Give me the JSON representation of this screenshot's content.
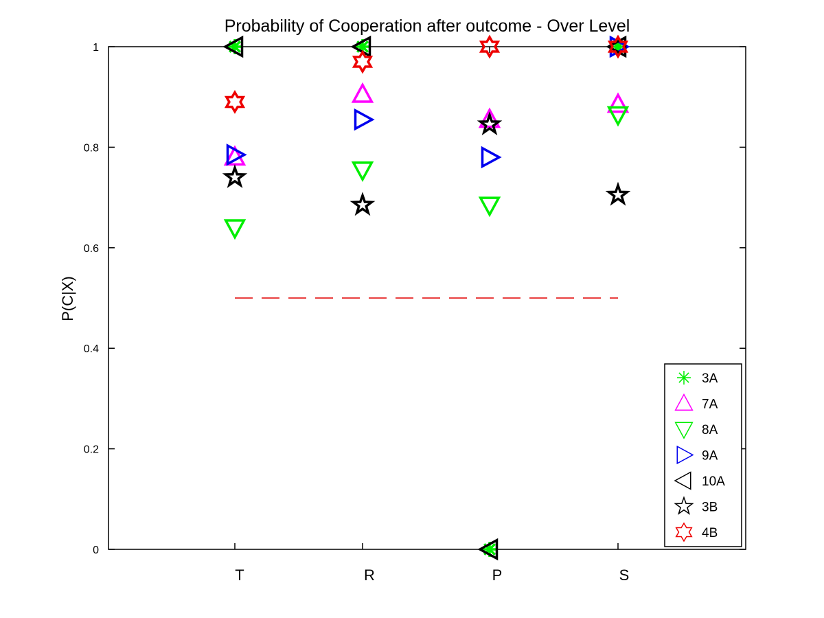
{
  "chart_data": {
    "type": "scatter",
    "title": "Probability of Cooperation after outcome - Over Level",
    "xlabel": "",
    "ylabel": "P(C|X)",
    "categories": [
      "T",
      "R",
      "P",
      "S"
    ],
    "ylim": [
      0,
      1
    ],
    "yticks": [
      "0",
      "0.2",
      "0.4",
      "0.6",
      "0.8",
      "1"
    ],
    "grid": false,
    "legend_position": "bottom-right",
    "reference_line": {
      "y": 0.5,
      "from": "T",
      "to": "S",
      "style": "dashed",
      "color": "#e00000"
    },
    "series": [
      {
        "name": "3A",
        "marker": "asterisk",
        "color": "#00ee00",
        "values": [
          1.0,
          1.0,
          0.0,
          1.0
        ]
      },
      {
        "name": "7A",
        "marker": "triangle-up",
        "color": "#ff00ff",
        "values": [
          0.78,
          0.905,
          0.855,
          0.885
        ]
      },
      {
        "name": "8A",
        "marker": "triangle-down",
        "color": "#00ee00",
        "values": [
          0.64,
          0.755,
          0.685,
          0.865
        ]
      },
      {
        "name": "9A",
        "marker": "triangle-right",
        "color": "#0000ee",
        "values": [
          0.785,
          0.855,
          0.78,
          1.0
        ]
      },
      {
        "name": "10A",
        "marker": "triangle-left",
        "color": "#000000",
        "values": [
          1.0,
          1.0,
          0.0,
          1.0
        ]
      },
      {
        "name": "3B",
        "marker": "star5",
        "color": "#000000",
        "values": [
          0.74,
          0.685,
          0.845,
          0.705
        ]
      },
      {
        "name": "4B",
        "marker": "star6",
        "color": "#ee0000",
        "values": [
          0.89,
          0.97,
          1.0,
          1.0
        ]
      }
    ]
  }
}
